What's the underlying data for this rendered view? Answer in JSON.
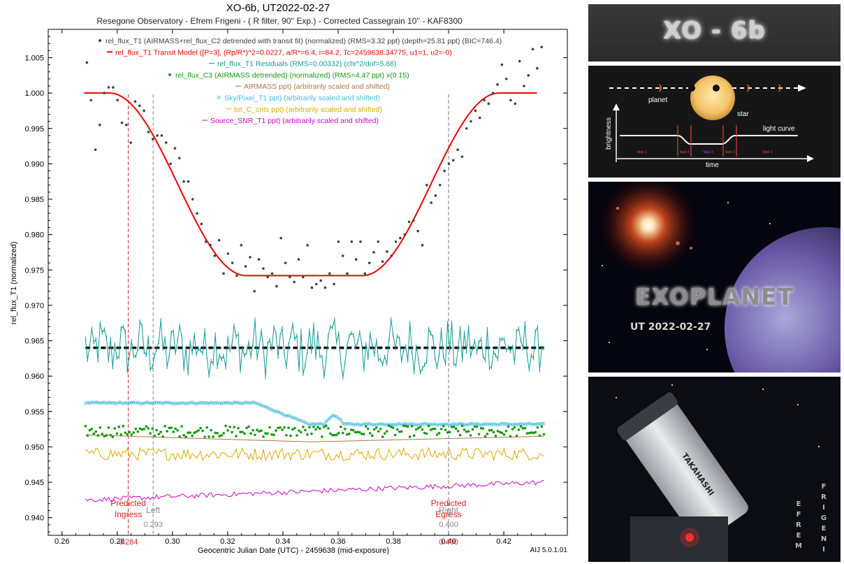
{
  "chart_data": {
    "type": "scatter",
    "title": "XO-6b, UT2022-02-27",
    "subtitle": "Resegone Observatory - Efrem Frigeni - ( R filter, 90'' Exp.) -  Corrected Cassegrain 10'' - KAF8300",
    "xlabel": "Geocentric Julian Date (UTC) - 2459638 (mid-exposure)",
    "ylabel": "rel_flux_T1 (normalized)",
    "xlim": [
      0.255,
      0.443
    ],
    "ylim": [
      0.9375,
      1.009
    ],
    "xticks": [
      "0.26",
      "0.28",
      "0.30",
      "0.32",
      "0.34",
      "0.36",
      "0.38",
      "0.40",
      "0.42"
    ],
    "yticks": [
      "0.940",
      "0.945",
      "0.950",
      "0.955",
      "0.960",
      "0.965",
      "0.970",
      "0.975",
      "0.980",
      "0.985",
      "0.990",
      "0.995",
      "1.000",
      "1.005"
    ],
    "footer": "AIJ 5.0.1.01",
    "legend_placement": "top",
    "legend": [
      {
        "text": "rel_flux_T1 (AIRMASS+rel_flux_C2 detrended with transit fit) (normalized) (RMS=3.32 ppt) (depth=25.81 ppt) (BIC=746.4)",
        "color": "#404040",
        "symbol": "dot"
      },
      {
        "text": "rel_flux_T1 Transit Model ([P=3], (Rp/R*)^2=0.0227, a/R*=6.4, i=84.2, Tc=2459638.34775, u1=1, u2=-0)",
        "color": "#ee0000",
        "symbol": "line"
      },
      {
        "text": "rel_flux_T1 Residuals (RMS=0.00332) (chi^2/dof=5.86)",
        "color": "#119999",
        "symbol": "line"
      },
      {
        "text": "rel_flux_C3 (AIRMASS detrended) (normalized) (RMS=4.47 ppt) x(0.15)",
        "color": "#119911",
        "symbol": "dot"
      },
      {
        "text": "AIRMASS ppt) (arbitrarily scaled and shifted)",
        "color": "#aa7744",
        "symbol": "line"
      },
      {
        "text": "Sky/Pixel_T1 ppt) (arbitrarily scaled and shifted)",
        "color": "#44bbdd",
        "symbol": "circle"
      },
      {
        "text": "tot_C_cnts ppt) (arbitrarily scaled and shifted)",
        "color": "#ddaa00",
        "symbol": "line"
      },
      {
        "text": "Source_SNR_T1 ppt) (arbitrarily scaled and shifted)",
        "color": "#cc00cc",
        "symbol": "line"
      }
    ],
    "markers": [
      {
        "x": 0.284,
        "label_top": "Predicted",
        "label_bottom": "Ingress",
        "value": "0.284",
        "color": "#dd2222"
      },
      {
        "x": 0.293,
        "label_top": "Left",
        "label_bottom": "",
        "value": "0.293",
        "color": "#888888"
      },
      {
        "x": 0.4,
        "label_top": "Predicted",
        "label_bottom": "Egress",
        "value": "0.400",
        "color": "#dd2222"
      },
      {
        "x": 0.4,
        "label_top": "Right",
        "label_bottom": "",
        "value": "0.400",
        "color": "#888888"
      }
    ],
    "model": {
      "name": "rel_flux_T1 Transit Model",
      "baseline": 1.0,
      "depth": 0.0258,
      "tc": 0.34775,
      "t1": 0.2772,
      "t2": 0.3267,
      "t3": 0.3688,
      "t4": 0.4183,
      "x_start": 0.268,
      "x_end": 0.432
    },
    "baseline_level": 0.964,
    "flux_points": [
      [
        0.269,
        1.0043
      ],
      [
        0.2705,
        0.999
      ],
      [
        0.2721,
        0.992
      ],
      [
        0.2737,
        0.9955
      ],
      [
        0.2753,
        1.0
      ],
      [
        0.2769,
        1.0008
      ],
      [
        0.2785,
        1.0008
      ],
      [
        0.2801,
        0.999
      ],
      [
        0.2817,
        0.9958
      ],
      [
        0.2833,
        0.9955
      ],
      [
        0.2849,
        0.993
      ],
      [
        0.2865,
        0.9988
      ],
      [
        0.2881,
        0.9982
      ],
      [
        0.2897,
        0.9975
      ],
      [
        0.2913,
        0.9945
      ],
      [
        0.2929,
        0.9935
      ],
      [
        0.2945,
        0.994
      ],
      [
        0.2961,
        0.994
      ],
      [
        0.2977,
        0.993
      ],
      [
        0.2993,
        0.99
      ],
      [
        0.3009,
        0.9922
      ],
      [
        0.3025,
        0.9908
      ],
      [
        0.3041,
        0.9875
      ],
      [
        0.3057,
        0.9875
      ],
      [
        0.3073,
        0.985
      ],
      [
        0.3089,
        0.983
      ],
      [
        0.3105,
        0.9815
      ],
      [
        0.3121,
        0.979
      ],
      [
        0.3137,
        0.9785
      ],
      [
        0.3153,
        0.977
      ],
      [
        0.3169,
        0.9792
      ],
      [
        0.3185,
        0.9745
      ],
      [
        0.3201,
        0.9773
      ],
      [
        0.3217,
        0.976
      ],
      [
        0.3233,
        0.9742
      ],
      [
        0.3249,
        0.9785
      ],
      [
        0.3265,
        0.9755
      ],
      [
        0.3281,
        0.9768
      ],
      [
        0.3297,
        0.972
      ],
      [
        0.3313,
        0.9765
      ],
      [
        0.3329,
        0.9752
      ],
      [
        0.3345,
        0.974
      ],
      [
        0.3361,
        0.9745
      ],
      [
        0.3377,
        0.9727
      ],
      [
        0.3393,
        0.9795
      ],
      [
        0.3409,
        0.976
      ],
      [
        0.3425,
        0.974
      ],
      [
        0.3441,
        0.9733
      ],
      [
        0.3457,
        0.9765
      ],
      [
        0.3473,
        0.974
      ],
      [
        0.3489,
        0.9785
      ],
      [
        0.3505,
        0.9725
      ],
      [
        0.3521,
        0.973
      ],
      [
        0.3537,
        0.9735
      ],
      [
        0.3553,
        0.9725
      ],
      [
        0.3569,
        0.9745
      ],
      [
        0.3585,
        0.973
      ],
      [
        0.3601,
        0.979
      ],
      [
        0.3617,
        0.977
      ],
      [
        0.3633,
        0.9745
      ],
      [
        0.3649,
        0.979
      ],
      [
        0.3665,
        0.9765
      ],
      [
        0.3681,
        0.979
      ],
      [
        0.3697,
        0.9745
      ],
      [
        0.3713,
        0.976
      ],
      [
        0.3729,
        0.9775
      ],
      [
        0.3745,
        0.979
      ],
      [
        0.3761,
        0.9762
      ],
      [
        0.3777,
        0.9776
      ],
      [
        0.3793,
        0.977
      ],
      [
        0.3809,
        0.979
      ],
      [
        0.3825,
        0.9795
      ],
      [
        0.3841,
        0.98
      ],
      [
        0.3857,
        0.9818
      ],
      [
        0.3873,
        0.982
      ],
      [
        0.3889,
        0.9805
      ],
      [
        0.3905,
        0.9785
      ],
      [
        0.3921,
        0.987
      ],
      [
        0.3937,
        0.9845
      ],
      [
        0.3953,
        0.9855
      ],
      [
        0.3969,
        0.987
      ],
      [
        0.3985,
        0.989
      ],
      [
        0.4001,
        0.99
      ],
      [
        0.4017,
        0.9905
      ],
      [
        0.4033,
        0.992
      ],
      [
        0.4049,
        0.991
      ],
      [
        0.4065,
        0.995
      ],
      [
        0.4081,
        0.996
      ],
      [
        0.4097,
        0.9975
      ],
      [
        0.4113,
        0.9965
      ],
      [
        0.4129,
        0.999
      ],
      [
        0.4145,
        0.9985
      ],
      [
        0.4161,
        1.0
      ],
      [
        0.4177,
        1.0012
      ],
      [
        0.4193,
        1.004
      ],
      [
        0.4209,
        1.002
      ],
      [
        0.4225,
        0.999
      ],
      [
        0.4241,
        0.9985
      ],
      [
        0.4257,
        1.0045
      ],
      [
        0.4273,
        1.001
      ],
      [
        0.4289,
        1.0025
      ],
      [
        0.4305,
        1.0062
      ],
      [
        0.4321,
        1.0035
      ],
      [
        0.4337,
        1.0065
      ]
    ],
    "series_layout_note": "",
    "derived_series_levels": {
      "residual_center": 0.964,
      "residual_amplitude": 0.0035,
      "c3_center": 0.9522,
      "c3_amplitude": 0.0008,
      "airmass_start": 0.9517,
      "airmass_end": 0.9507,
      "sky_start": 0.9562,
      "sky_end": 0.9531,
      "totc_center": 0.949,
      "totc_amplitude": 0.0009,
      "snr_start": 0.9425,
      "snr_end": 0.945
    }
  },
  "panels": {
    "title_panel": {
      "text": "XO - 6b"
    },
    "diagram_panel": {
      "planet_label": "planet",
      "star_label": "star",
      "brightness_label": "brightness",
      "light_curve_label": "light curve",
      "time_label": "time",
      "phase_labels": [
        "fase 1",
        "fase 2",
        "fase 3",
        "fase 2",
        "fase 1"
      ]
    },
    "exoplanet_panel": {
      "title": "EXOPLANET",
      "date": "UT 2022-02-27"
    },
    "telescope_panel": {
      "brand": "TAKAHASHI",
      "vertical_first": "EFREM",
      "vertical_last": "FRIGENI"
    }
  },
  "colors": {
    "flux": "#404040",
    "model": "#ee0000",
    "residuals": "#119999",
    "c3": "#119911",
    "airmass": "#aa7744",
    "sky": "#44bbdd",
    "totc": "#ddaa00",
    "snr": "#cc00cc"
  }
}
